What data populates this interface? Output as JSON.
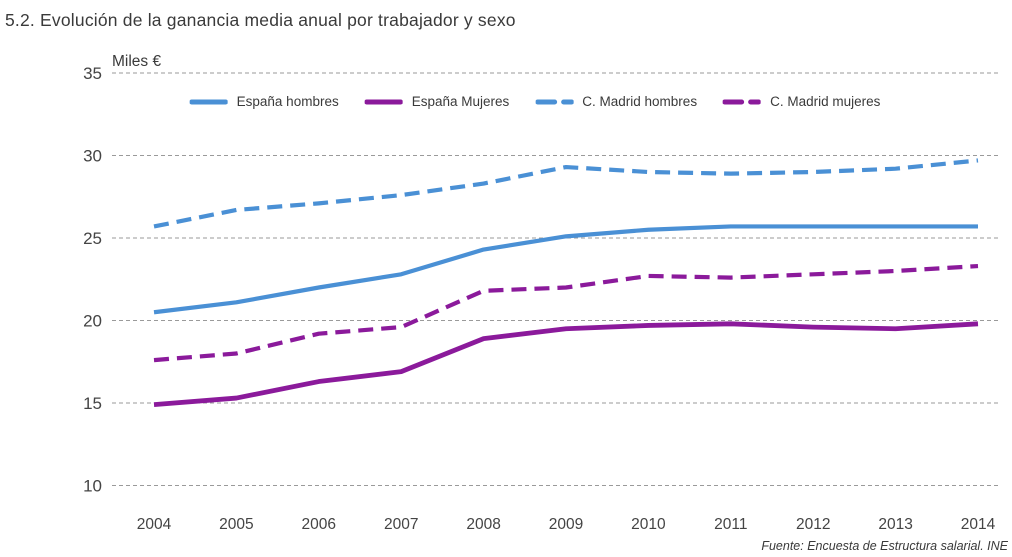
{
  "title": "5.2. Evolución de la ganancia media anual por trabajador y sexo",
  "source": "Fuente: Encuesta de Estructura salarial. INE",
  "colors": {
    "blue": "#4a90d5",
    "purple": "#8b1a9b",
    "grid": "#9a9a9a",
    "text": "#3a3a3a"
  },
  "chart_data": {
    "type": "line",
    "title": "5.2. Evolución de la ganancia media anual por trabajador y sexo",
    "ylabel": "Miles €",
    "xlabel": "",
    "ylim": [
      10,
      35
    ],
    "yticks": [
      35,
      30,
      25,
      20,
      15,
      10
    ],
    "grid": true,
    "grid_style": "dashed",
    "legend_position": "top-inside",
    "x": [
      2004,
      2005,
      2006,
      2007,
      2008,
      2009,
      2010,
      2011,
      2012,
      2013,
      2014
    ],
    "series": [
      {
        "name": "España hombres",
        "color_key": "blue",
        "dashed": false,
        "values": [
          20.5,
          21.1,
          22.0,
          22.8,
          24.3,
          25.1,
          25.5,
          25.7,
          25.7,
          25.7,
          25.7
        ]
      },
      {
        "name": "España Mujeres",
        "color_key": "purple",
        "dashed": false,
        "values": [
          14.9,
          15.3,
          16.3,
          16.9,
          18.9,
          19.5,
          19.7,
          19.8,
          19.6,
          19.5,
          19.8
        ]
      },
      {
        "name": "C. Madrid hombres",
        "color_key": "blue",
        "dashed": true,
        "values": [
          25.7,
          26.7,
          27.1,
          27.6,
          28.3,
          29.3,
          29.0,
          28.9,
          29.0,
          29.2,
          29.7
        ]
      },
      {
        "name": "C. Madrid mujeres",
        "color_key": "purple",
        "dashed": true,
        "values": [
          17.6,
          18.0,
          19.2,
          19.6,
          21.8,
          22.0,
          22.7,
          22.6,
          22.8,
          23.0,
          23.3
        ]
      }
    ]
  }
}
